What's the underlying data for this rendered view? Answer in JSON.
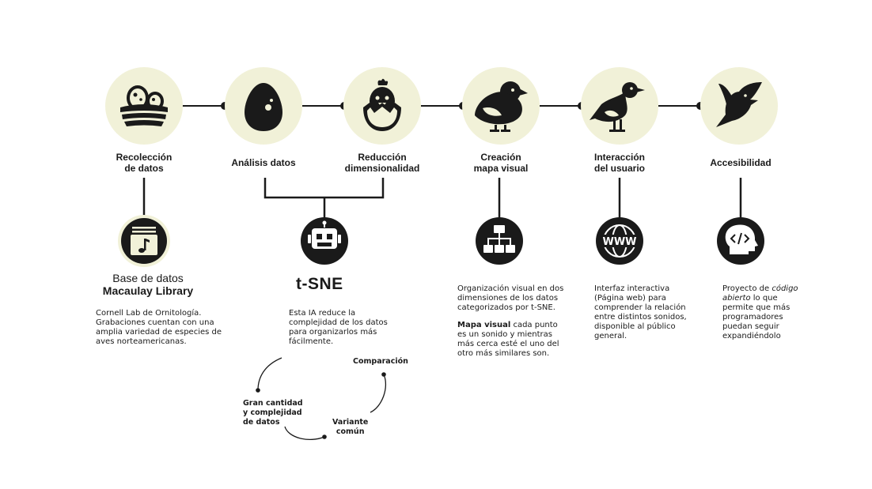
{
  "colors": {
    "circle_bg": "#f1f1d8",
    "dark": "#1a1a1a",
    "light": "#ffffff"
  },
  "stages": [
    {
      "label": "Recolección\nde datos",
      "icon": "bird-nest-icon"
    },
    {
      "label": "Análisis datos",
      "icon": "egg-icon"
    },
    {
      "label": "Reducción\ndimensionalidad",
      "icon": "hatching-chick-icon"
    },
    {
      "label": "Creación\nmapa visual",
      "icon": "chick-icon"
    },
    {
      "label": "Interacción\ndel usuario",
      "icon": "seagull-icon"
    },
    {
      "label": "Accesibilidad",
      "icon": "flying-bird-icon"
    }
  ],
  "details": {
    "macaulay": {
      "icon": "music-file-icon",
      "line1": "Base de datos",
      "line2": "Macaulay Library",
      "text": "Cornell Lab de Ornitología. Grabaciones cuentan con una amplia variedad de especies de aves norteamericanas."
    },
    "tsne": {
      "icon": "robot-icon",
      "title": "t-SNE",
      "text": "Esta IA reduce la complejidad de los datos para organizarlos más fácilmente.",
      "cycle": [
        "Comparación",
        "Variante\ncomún",
        "Gran cantidad\ny complejidad\nde datos"
      ]
    },
    "map": {
      "icon": "sitemap-icon",
      "text1": "Organización visual en dos dimensiones de los datos categorizados por t-SNE.",
      "bold": "Mapa visual",
      "text2": " cada punto es un sonido y mientras más cerca esté el uno del otro más similares son."
    },
    "web": {
      "icon": "www-globe-icon",
      "text": "Interfaz interactiva (Página web) para comprender la relación entre distintos sonidos, disponible al público general."
    },
    "open": {
      "icon": "code-head-icon",
      "pre": "Proyecto de ",
      "italic": "código abierto",
      "post": " lo que permite que más programadores puedan seguir expandiéndolo"
    }
  }
}
